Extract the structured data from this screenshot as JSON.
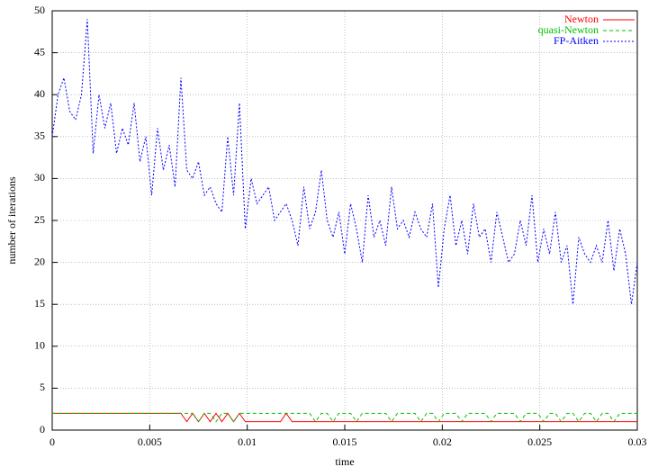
{
  "chart_data": {
    "type": "line",
    "xlabel": "time",
    "ylabel": "number of iterations",
    "xlim": [
      0,
      0.03
    ],
    "ylim": [
      0,
      50
    ],
    "xticks": [
      0,
      0.005,
      0.01,
      0.015,
      0.02,
      0.025,
      0.03
    ],
    "yticks": [
      0,
      5,
      10,
      15,
      20,
      25,
      30,
      35,
      40,
      45,
      50
    ],
    "grid": true,
    "legend": "top-right",
    "x": [
      0,
      0.0003,
      0.0006,
      0.0009,
      0.0012,
      0.0015,
      0.0018,
      0.0021,
      0.0024,
      0.0027,
      0.003,
      0.0033,
      0.0036,
      0.0039,
      0.0042,
      0.0045,
      0.0048,
      0.0051,
      0.0054,
      0.0057,
      0.006,
      0.0063,
      0.0066,
      0.0069,
      0.0072,
      0.0075,
      0.0078,
      0.0081,
      0.0084,
      0.0087,
      0.009,
      0.0093,
      0.0096,
      0.0099,
      0.0102,
      0.0105,
      0.0108,
      0.0111,
      0.0114,
      0.0117,
      0.012,
      0.0123,
      0.0126,
      0.0129,
      0.0132,
      0.0135,
      0.0138,
      0.0141,
      0.0144,
      0.0147,
      0.015,
      0.0153,
      0.0156,
      0.0159,
      0.0162,
      0.0165,
      0.0168,
      0.0171,
      0.0174,
      0.0177,
      0.018,
      0.0183,
      0.0186,
      0.0189,
      0.0192,
      0.0195,
      0.0198,
      0.0201,
      0.0204,
      0.0207,
      0.021,
      0.0213,
      0.0216,
      0.0219,
      0.0222,
      0.0225,
      0.0228,
      0.0231,
      0.0234,
      0.0237,
      0.024,
      0.0243,
      0.0246,
      0.0249,
      0.0252,
      0.0255,
      0.0258,
      0.0261,
      0.0264,
      0.0267,
      0.027,
      0.0273,
      0.0276,
      0.0279,
      0.0282,
      0.0285,
      0.0288,
      0.0291,
      0.0294,
      0.0297,
      0.03
    ],
    "series": [
      {
        "name": "Newton",
        "color": "#ff0000",
        "style": "solid",
        "values": [
          2,
          2,
          2,
          2,
          2,
          2,
          2,
          2,
          2,
          2,
          2,
          2,
          2,
          2,
          2,
          2,
          2,
          2,
          2,
          2,
          2,
          2,
          2,
          1,
          2,
          1,
          2,
          1,
          2,
          1,
          2,
          1,
          2,
          1,
          1,
          1,
          1,
          1,
          1,
          1,
          2,
          1,
          1,
          1,
          1,
          1,
          1,
          1,
          1,
          1,
          1,
          1,
          1,
          1,
          1,
          1,
          1,
          1,
          1,
          1,
          1,
          1,
          1,
          1,
          1,
          1,
          1,
          1,
          1,
          1,
          1,
          1,
          1,
          1,
          1,
          1,
          1,
          1,
          1,
          1,
          1,
          1,
          1,
          1,
          1,
          1,
          1,
          1,
          1,
          1,
          1,
          1,
          1,
          1,
          1,
          1,
          1,
          1,
          1,
          1,
          1
        ]
      },
      {
        "name": "quasi-Newton",
        "color": "#00c000",
        "style": "dashed",
        "values": [
          2,
          2,
          2,
          2,
          2,
          2,
          2,
          2,
          2,
          2,
          2,
          2,
          2,
          2,
          2,
          2,
          2,
          2,
          2,
          2,
          2,
          2,
          2,
          2,
          2,
          1,
          2,
          2,
          1,
          2,
          2,
          1,
          2,
          2,
          2,
          2,
          2,
          2,
          2,
          2,
          2,
          2,
          2,
          2,
          2,
          1,
          2,
          2,
          1,
          2,
          2,
          2,
          1,
          2,
          2,
          2,
          2,
          2,
          1,
          2,
          2,
          2,
          2,
          1,
          2,
          2,
          1,
          2,
          2,
          2,
          1,
          2,
          2,
          2,
          2,
          1,
          2,
          2,
          2,
          2,
          1,
          2,
          2,
          2,
          1,
          2,
          2,
          1,
          2,
          2,
          1,
          2,
          2,
          1,
          2,
          2,
          1,
          2,
          2,
          2,
          2
        ]
      },
      {
        "name": "FP-Aitken",
        "color": "#0000ff",
        "style": "dotted",
        "values": [
          35,
          40,
          42,
          38,
          37,
          40,
          49,
          33,
          40,
          36,
          39,
          33,
          36,
          34,
          39,
          32,
          35,
          28,
          36,
          31,
          34,
          29,
          42,
          31,
          30,
          32,
          28,
          29,
          27,
          26,
          35,
          28,
          39,
          24,
          30,
          27,
          28,
          29,
          25,
          26,
          27,
          25,
          22,
          29,
          24,
          26,
          31,
          25,
          23,
          26,
          21,
          27,
          24,
          20,
          28,
          23,
          25,
          22,
          29,
          24,
          25,
          23,
          26,
          24,
          23,
          27,
          17,
          24,
          28,
          22,
          25,
          21,
          27,
          23,
          24,
          20,
          26,
          23,
          20,
          21,
          25,
          22,
          28,
          20,
          24,
          21,
          26,
          20,
          22,
          15,
          23,
          21,
          20,
          22,
          20,
          25,
          19,
          24,
          21,
          15,
          20
        ]
      }
    ]
  }
}
